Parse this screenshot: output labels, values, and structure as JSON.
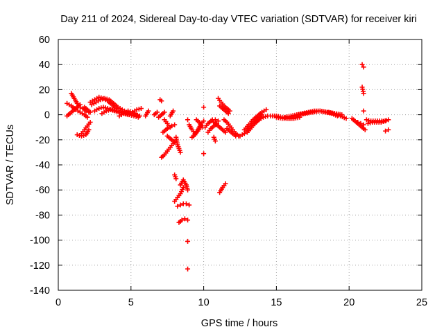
{
  "chart_data": {
    "type": "scatter",
    "title": "Day 211 of 2024, Sidereal Day-to-day VTEC variation (SDTVAR) for receiver kiri",
    "xlabel": "GPS time / hours",
    "ylabel": "SDTVAR / TECUs",
    "xlim": [
      0,
      25
    ],
    "ylim": [
      -140,
      60
    ],
    "xticks": [
      0,
      5,
      10,
      15,
      20,
      25
    ],
    "yticks": [
      -140,
      -120,
      -100,
      -80,
      -60,
      -40,
      -20,
      0,
      20,
      40,
      60
    ],
    "grid": true,
    "marker": "+",
    "color": "#ff0000",
    "segments": [
      {
        "x": [
          0.6,
          0.9,
          1.2,
          1.5,
          1.8,
          2.0
        ],
        "y": [
          9,
          7,
          4,
          2,
          0,
          -2
        ]
      },
      {
        "x": [
          0.6,
          0.9,
          1.2,
          1.5
        ],
        "y": [
          -1,
          2,
          5,
          8
        ]
      },
      {
        "x": [
          0.9,
          1.1,
          1.3,
          1.5,
          1.7,
          1.9,
          2.1
        ],
        "y": [
          17,
          13,
          9,
          6,
          5,
          3,
          2
        ]
      },
      {
        "x": [
          1.3,
          1.6,
          1.9,
          2.1
        ],
        "y": [
          -16,
          -17,
          -16,
          -12
        ]
      },
      {
        "x": [
          1.6,
          1.8,
          2.0,
          2.2
        ],
        "y": [
          -15,
          -12,
          -9,
          -6
        ]
      },
      {
        "x": [
          1.8,
          2.0,
          2.2
        ],
        "y": [
          6,
          4,
          2
        ]
      },
      {
        "x": [
          2.3,
          2.6,
          2.9,
          3.2,
          3.5,
          3.8,
          4.1,
          4.4,
          4.7,
          5.0,
          5.3,
          5.6
        ],
        "y": [
          8,
          10,
          12,
          13,
          12,
          9,
          6,
          4,
          2,
          1,
          0,
          -1
        ]
      },
      {
        "x": [
          2.2,
          2.5,
          2.8,
          3.1,
          3.4,
          3.7,
          4.0
        ],
        "y": [
          10,
          12,
          14,
          13,
          11,
          8,
          5
        ]
      },
      {
        "x": [
          2.5,
          2.8,
          3.1,
          3.4,
          3.7,
          4.0,
          4.3,
          4.6,
          4.9,
          5.2,
          5.5
        ],
        "y": [
          3,
          5,
          6,
          5,
          4,
          3,
          2,
          1,
          0,
          -1,
          -2
        ]
      },
      {
        "x": [
          3.0,
          3.3,
          3.6,
          3.9,
          4.2,
          4.5,
          4.8,
          5.1,
          5.4,
          5.7
        ],
        "y": [
          1,
          3,
          4,
          3,
          2,
          1,
          0,
          2,
          4,
          5
        ]
      },
      {
        "x": [
          4.2,
          4.5,
          4.8,
          5.1,
          5.4
        ],
        "y": [
          -1,
          1,
          3,
          2,
          0
        ]
      },
      {
        "x": [
          6.0,
          6.2
        ],
        "y": [
          -1,
          3
        ]
      },
      {
        "x": [
          6.6,
          6.8
        ],
        "y": [
          0,
          2
        ]
      },
      {
        "x": [
          6.9,
          7.1,
          7.3
        ],
        "y": [
          -2,
          0,
          2
        ]
      },
      {
        "x": [
          7.0,
          7.1
        ],
        "y": [
          12,
          11
        ]
      },
      {
        "x": [
          7.7,
          7.9
        ],
        "y": [
          -1,
          3
        ]
      },
      {
        "x": [
          7.1,
          7.3,
          7.5,
          7.7,
          7.9,
          8.1
        ],
        "y": [
          -34,
          -32,
          -29,
          -26,
          -23,
          -21
        ]
      },
      {
        "x": [
          7.2,
          7.4,
          7.6,
          7.8,
          8.0
        ],
        "y": [
          -14,
          -12,
          -10,
          -9,
          -8
        ]
      },
      {
        "x": [
          7.3,
          7.5,
          7.7
        ],
        "y": [
          -4,
          -7,
          -10
        ]
      },
      {
        "x": [
          7.5,
          7.7,
          7.9
        ],
        "y": [
          -17,
          -19,
          -21
        ]
      },
      {
        "x": [
          8.1,
          8.2,
          8.4
        ],
        "y": [
          -18,
          -24,
          -30
        ]
      },
      {
        "x": [
          8.0,
          8.2,
          8.4,
          8.6
        ],
        "y": [
          -69,
          -66,
          -63,
          -58
        ]
      },
      {
        "x": [
          8.2,
          8.4,
          8.6,
          8.8,
          9.0
        ],
        "y": [
          -73,
          -72,
          -71,
          -71,
          -72
        ]
      },
      {
        "x": [
          8.3,
          8.5,
          8.7,
          8.9
        ],
        "y": [
          -86,
          -84,
          -83,
          -84
        ]
      },
      {
        "x": [
          8.4,
          8.6,
          8.8,
          8.9
        ],
        "y": [
          -56,
          -52,
          -56,
          -60
        ]
      },
      {
        "x": [
          8.0,
          8.1
        ],
        "y": [
          -48,
          -51
        ]
      },
      {
        "x": [
          8.9
        ],
        "y": [
          -101
        ]
      },
      {
        "x": [
          8.9
        ],
        "y": [
          -123
        ]
      },
      {
        "x": [
          8.9
        ],
        "y": [
          -4
        ]
      },
      {
        "x": [
          9.0,
          9.2,
          9.4,
          9.6,
          9.8
        ],
        "y": [
          -8,
          -12,
          -15,
          -13,
          -9
        ]
      },
      {
        "x": [
          9.2,
          9.4,
          9.6,
          9.8,
          10.0
        ],
        "y": [
          -18,
          -16,
          -12,
          -8,
          -5
        ]
      },
      {
        "x": [
          9.5,
          9.7,
          9.9
        ],
        "y": [
          -4,
          -6,
          -10
        ]
      },
      {
        "x": [
          10.0
        ],
        "y": [
          6
        ]
      },
      {
        "x": [
          10.0
        ],
        "y": [
          -31
        ]
      },
      {
        "x": [
          10.1,
          10.3,
          10.5,
          10.7,
          10.9,
          11.1,
          11.3,
          11.5
        ],
        "y": [
          -10,
          -7,
          -5,
          -6,
          -8,
          -10,
          -12,
          -14
        ]
      },
      {
        "x": [
          10.3,
          10.5,
          10.7,
          10.9
        ],
        "y": [
          -14,
          -11,
          -9,
          -7
        ]
      },
      {
        "x": [
          10.6,
          10.8,
          11.0
        ],
        "y": [
          -4,
          -4,
          -5
        ]
      },
      {
        "x": [
          10.7,
          10.8
        ],
        "y": [
          -18,
          -21
        ]
      },
      {
        "x": [
          11.0,
          11.2,
          11.4,
          11.6,
          11.8
        ],
        "y": [
          13,
          10,
          7,
          5,
          3
        ]
      },
      {
        "x": [
          11.1,
          11.3,
          11.5,
          11.7
        ],
        "y": [
          7,
          5,
          3,
          1
        ]
      },
      {
        "x": [
          11.1,
          11.3,
          11.5
        ],
        "y": [
          -62,
          -58,
          -55
        ]
      },
      {
        "x": [
          11.4,
          11.6,
          11.8,
          12.0,
          12.2,
          12.4
        ],
        "y": [
          -4,
          -6,
          -9,
          -12,
          -15,
          -17
        ]
      },
      {
        "x": [
          11.6,
          11.8,
          12.0,
          12.2
        ],
        "y": [
          -11,
          -13,
          -15,
          -17
        ]
      },
      {
        "x": [
          12.5,
          12.8,
          13.1,
          13.4,
          13.7,
          14.0
        ],
        "y": [
          -17,
          -15,
          -11,
          -7,
          -3,
          0
        ]
      },
      {
        "x": [
          12.8,
          13.1,
          13.4,
          13.7,
          14.0,
          14.3
        ],
        "y": [
          -12,
          -8,
          -4,
          -1,
          2,
          4
        ]
      },
      {
        "x": [
          13.0,
          13.3,
          13.6,
          13.9
        ],
        "y": [
          -14,
          -10,
          -6,
          -3
        ]
      },
      {
        "x": [
          13.5,
          13.8,
          14.1,
          14.4
        ],
        "y": [
          -7,
          -4,
          -2,
          -1
        ]
      },
      {
        "x": [
          14.6,
          15.0,
          15.4,
          15.8,
          16.2
        ],
        "y": [
          -1,
          -1,
          -2,
          -3,
          -3
        ]
      },
      {
        "x": [
          15.0,
          15.4,
          15.8,
          16.2,
          16.6
        ],
        "y": [
          -2,
          -3,
          -3,
          -3,
          -2
        ]
      },
      {
        "x": [
          15.6,
          16.0,
          16.4,
          16.8,
          17.2,
          17.6,
          18.0,
          18.4,
          18.8,
          19.2
        ],
        "y": [
          -2,
          -1,
          0,
          1,
          2,
          3,
          3,
          2,
          1,
          -1
        ]
      },
      {
        "x": [
          16.5,
          17.0,
          17.5,
          18.0,
          18.5,
          19.0,
          19.5
        ],
        "y": [
          0,
          1,
          2,
          3,
          2,
          1,
          0
        ]
      },
      {
        "x": [
          18.6,
          19.0,
          19.4,
          19.8
        ],
        "y": [
          2,
          1,
          -1,
          -3
        ]
      },
      {
        "x": [
          20.2,
          20.4,
          20.6,
          20.8,
          21.0
        ],
        "y": [
          -3,
          -5,
          -6,
          -7,
          -8
        ]
      },
      {
        "x": [
          20.5,
          20.7,
          20.9,
          21.1
        ],
        "y": [
          -6,
          -8,
          -10,
          -12
        ]
      },
      {
        "x": [
          21.2,
          21.5,
          21.8,
          22.1,
          22.4,
          22.7
        ],
        "y": [
          -4,
          -5,
          -5,
          -5,
          -5,
          -4
        ]
      },
      {
        "x": [
          21.3,
          21.6,
          21.9,
          22.2,
          22.5
        ],
        "y": [
          -7,
          -6,
          -6,
          -6,
          -5
        ]
      },
      {
        "x": [
          22.5,
          22.7
        ],
        "y": [
          -13,
          -12
        ]
      },
      {
        "x": [
          20.9,
          21.0
        ],
        "y": [
          40,
          38
        ]
      },
      {
        "x": [
          20.9,
          21.0
        ],
        "y": [
          22,
          17
        ]
      },
      {
        "x": [
          21.0
        ],
        "y": [
          3
        ]
      }
    ]
  }
}
